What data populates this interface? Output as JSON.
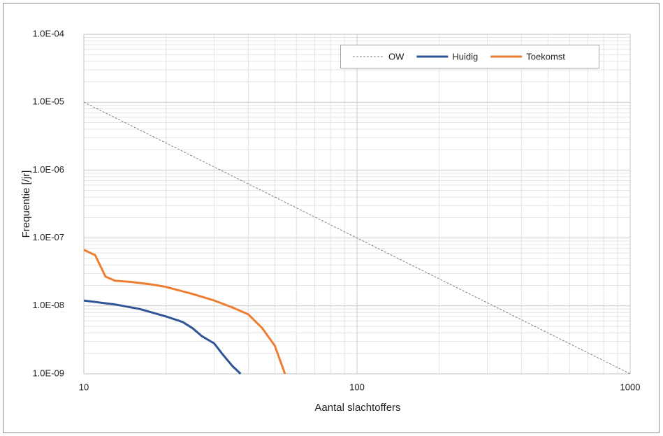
{
  "chart_data": {
    "type": "line",
    "x_label": "Aantal slachtoffers",
    "y_label": "Frequentie [/jr]",
    "log_x": true,
    "log_y": true,
    "grid": true,
    "legend": "top-right",
    "xlim": [
      10,
      1000
    ],
    "xticks": [
      10,
      100,
      1000
    ],
    "ylim": [
      1e-09,
      0.0001
    ],
    "yticks": [
      {
        "value": 1e-09,
        "label": "1.0E-09"
      },
      {
        "value": 1e-08,
        "label": "1.0E-08"
      },
      {
        "value": 1e-07,
        "label": "1.0E-07"
      },
      {
        "value": 1e-06,
        "label": "1.0E-06"
      },
      {
        "value": 1e-05,
        "label": "1.0E-05"
      },
      {
        "value": 0.0001,
        "label": "1.0E-04"
      }
    ],
    "series": [
      {
        "name": "OW",
        "color": "#808080",
        "dashed": true,
        "x": [
          10,
          1000
        ],
        "values": [
          1e-05,
          1e-09
        ]
      },
      {
        "name": "Huidig",
        "color": "#2f5597",
        "x": [
          10,
          13,
          16,
          20,
          23,
          25,
          27,
          30,
          32,
          35,
          37.5
        ],
        "values": [
          1.2e-08,
          1.05e-08,
          9e-09,
          7e-09,
          5.8e-09,
          4.7e-09,
          3.6e-09,
          2.8e-09,
          2e-09,
          1.3e-09,
          1e-09
        ]
      },
      {
        "name": "Toekomst",
        "color": "#ed7d31",
        "x": [
          10,
          11,
          12,
          13,
          15,
          18,
          20,
          25,
          30,
          35,
          40,
          45,
          50,
          54.5
        ],
        "values": [
          6.7e-08,
          5.6e-08,
          2.7e-08,
          2.35e-08,
          2.25e-08,
          2.05e-08,
          1.9e-08,
          1.5e-08,
          1.2e-08,
          9.5e-09,
          7.5e-09,
          4.7e-09,
          2.6e-09,
          1e-09
        ]
      }
    ]
  }
}
